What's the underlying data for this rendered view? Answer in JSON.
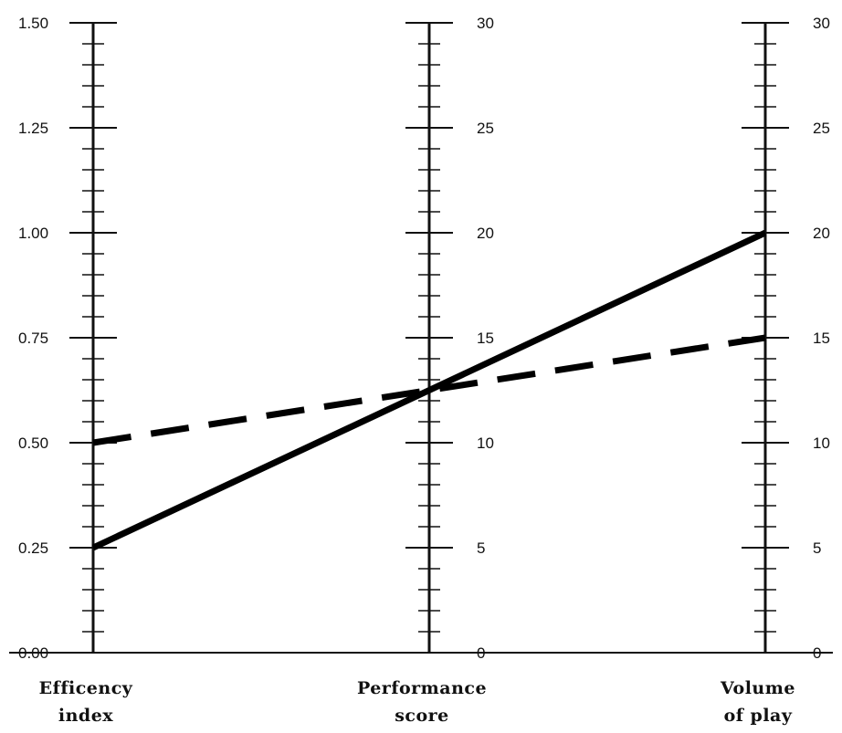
{
  "chart_data": {
    "type": "line",
    "chart_kind": "nomogram",
    "axes": [
      {
        "name": "efficiency",
        "title_lines": [
          "Efficency",
          "index"
        ],
        "range": [
          0,
          1.5
        ],
        "major_step": 0.25,
        "minor_per_major": 5,
        "tick_labels": [
          "0.00",
          "0.25",
          "0.50",
          "0.75",
          "1.00",
          "1.25",
          "1.50"
        ],
        "label_side": "left"
      },
      {
        "name": "performance",
        "title_lines": [
          "Performance",
          "score"
        ],
        "range": [
          0,
          30
        ],
        "major_step": 5,
        "minor_per_major": 5,
        "tick_labels": [
          "0",
          "5",
          "10",
          "15",
          "20",
          "25",
          "30"
        ],
        "label_side": "right"
      },
      {
        "name": "volume",
        "title_lines": [
          "Volume",
          "of play"
        ],
        "range": [
          0,
          30
        ],
        "major_step": 5,
        "minor_per_major": 5,
        "tick_labels": [
          "0",
          "5",
          "10",
          "15",
          "20",
          "25",
          "30"
        ],
        "label_side": "right"
      }
    ],
    "series": [
      {
        "style": "solid",
        "values": {
          "efficiency": 0.25,
          "performance": 12.5,
          "volume": 20
        }
      },
      {
        "style": "dashed",
        "values": {
          "efficiency": 0.5,
          "performance": 12.5,
          "volume": 15
        }
      }
    ],
    "grid": false,
    "legend": "none"
  }
}
